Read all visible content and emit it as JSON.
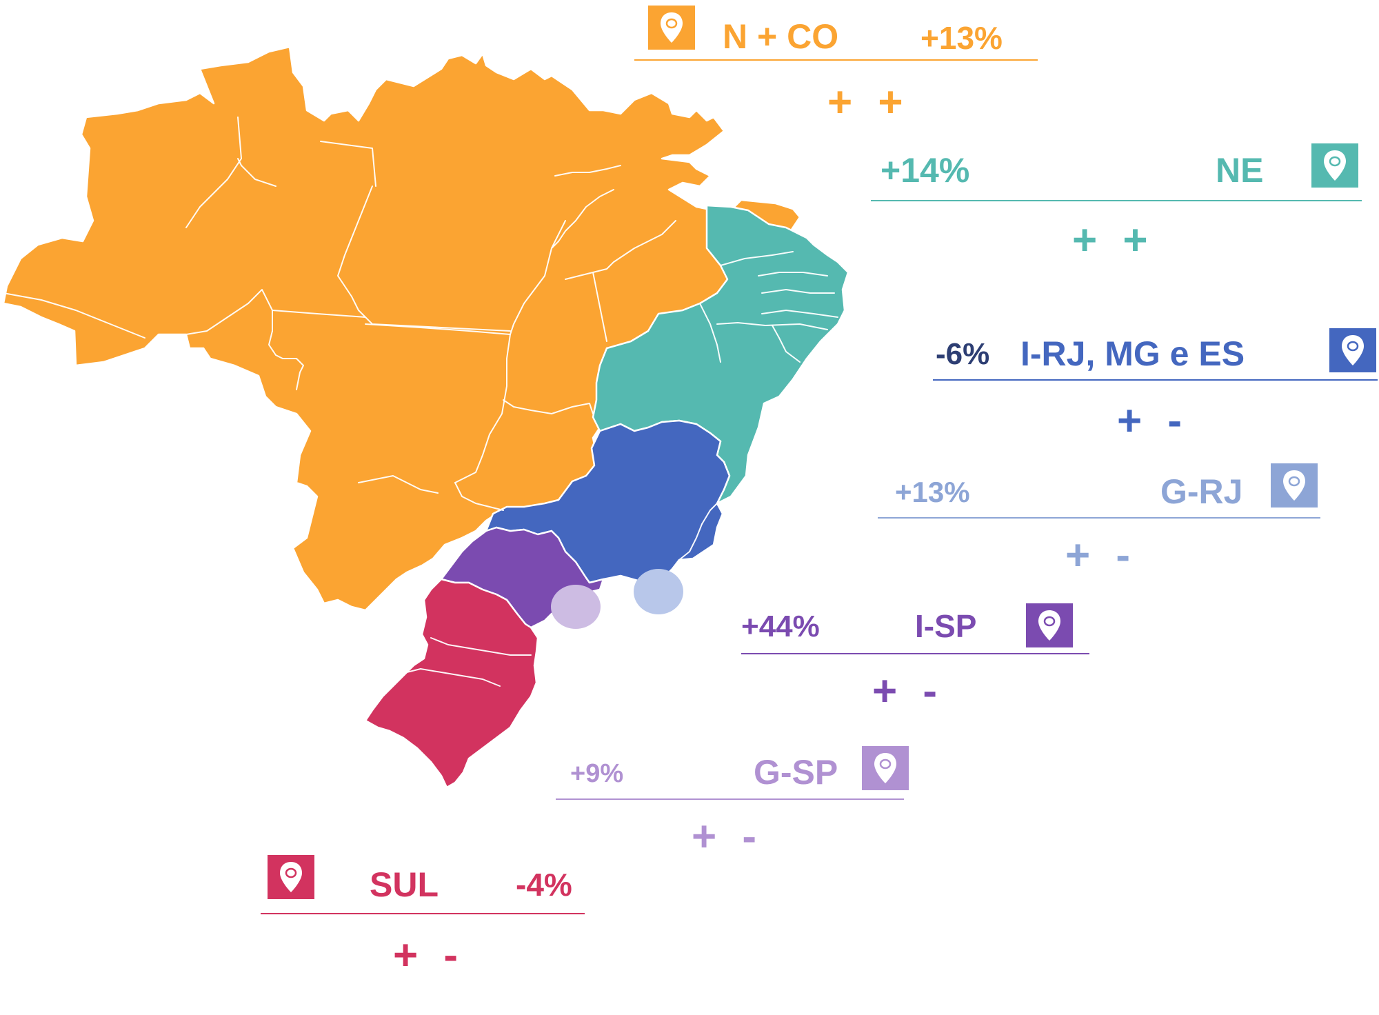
{
  "regions": {
    "n_co": {
      "name": "N + CO",
      "change": "+13%",
      "signs": "+ +",
      "color": "#FBA432"
    },
    "ne": {
      "name": "NE",
      "change": "+14%",
      "signs": "+ +",
      "color": "#55B9B0"
    },
    "i_rj": {
      "name": "I-RJ, MG e ES",
      "change": "-6%",
      "signs": "+ -",
      "color": "#4467BF"
    },
    "g_rj": {
      "name": "G-RJ",
      "change": "+13%",
      "signs": "+ -",
      "color": "#8DA5D6"
    },
    "i_sp": {
      "name": "I-SP",
      "change": "+44%",
      "signs": "+ -",
      "color": "#7B4BB0"
    },
    "g_sp": {
      "name": "G-SP",
      "change": "+9%",
      "signs": "+ -",
      "color": "#B091D2"
    },
    "sul": {
      "name": "SUL",
      "change": "-4%",
      "signs": "+ -",
      "color": "#D2335F"
    }
  },
  "map": {
    "metro_markers": {
      "g_sp_color": "#CDBCE3",
      "g_rj_color": "#B8C7EA"
    }
  },
  "icons": {
    "pin": "map-pin-icon"
  }
}
